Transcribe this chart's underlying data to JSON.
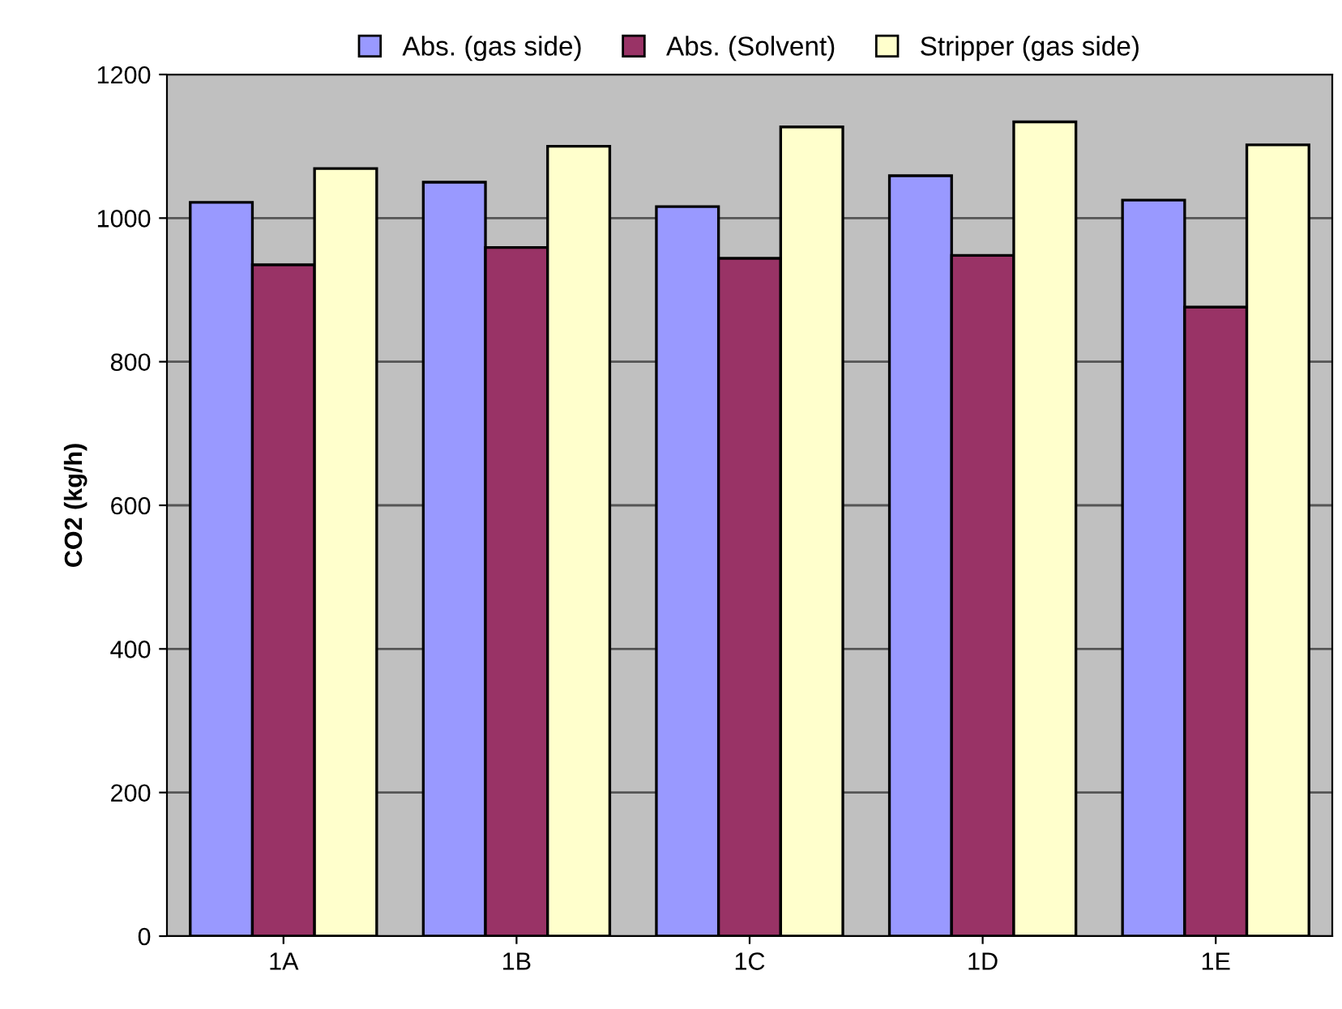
{
  "chart_data": {
    "type": "bar",
    "ylabel": "CO2 (kg/h)",
    "categories": [
      "1A",
      "1B",
      "1C",
      "1D",
      "1E"
    ],
    "series": [
      {
        "name": "Abs. (gas side)",
        "color": "#9999ff",
        "values": [
          1022,
          1050,
          1016,
          1059,
          1025
        ]
      },
      {
        "name": "Abs. (Solvent)",
        "color": "#993366",
        "values": [
          935,
          959,
          944,
          948,
          876
        ]
      },
      {
        "name": "Stripper (gas side)",
        "color": "#ffffcc",
        "values": [
          1069,
          1100,
          1127,
          1134,
          1102
        ]
      }
    ],
    "ylim": [
      0,
      1200
    ],
    "yticks": [
      0,
      200,
      400,
      600,
      800,
      1000,
      1200
    ],
    "grid": "y",
    "legend": "top"
  }
}
